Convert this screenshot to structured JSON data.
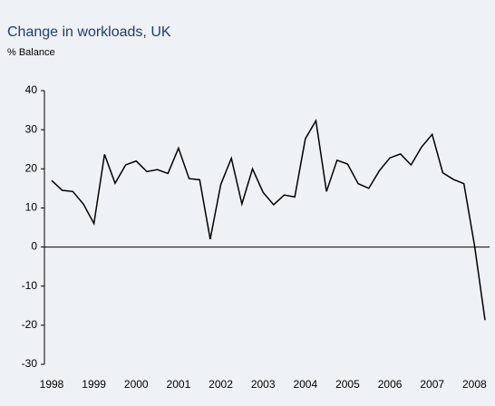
{
  "chart_data": {
    "type": "line",
    "title": "Change in workloads, UK",
    "subtitle": "% Balance",
    "x": [
      1998,
      1998.25,
      1998.5,
      1998.75,
      1999,
      1999.25,
      1999.5,
      1999.75,
      2000,
      2000.25,
      2000.5,
      2000.75,
      2001,
      2001.25,
      2001.5,
      2001.75,
      2002,
      2002.25,
      2002.5,
      2002.75,
      2003,
      2003.25,
      2003.5,
      2003.75,
      2004,
      2004.25,
      2004.5,
      2004.75,
      2005,
      2005.25,
      2005.5,
      2005.75,
      2006,
      2006.25,
      2006.5,
      2006.75,
      2007,
      2007.25,
      2007.5,
      2007.75,
      2008,
      2008.25
    ],
    "series": [
      {
        "color": "#000000",
        "values": [
          17,
          14.5,
          14.2,
          11,
          6,
          23.7,
          16.3,
          21,
          22,
          19.3,
          19.8,
          18.8,
          25.3,
          17.5,
          17.2,
          2,
          16,
          22.7,
          11,
          20,
          14,
          10.8,
          13.3,
          12.8,
          27.7,
          32.3,
          14.2,
          22.2,
          21.2,
          16.2,
          15,
          19.5,
          22.8,
          23.8,
          21,
          25.6,
          28.8,
          19,
          17.3,
          16.2,
          0.5,
          -18.7
        ]
      }
    ],
    "xlim": [
      1998,
      2008.25
    ],
    "xticks": [
      1998,
      1999,
      2000,
      2001,
      2002,
      2003,
      2004,
      2005,
      2006,
      2007,
      2008
    ],
    "ylim": [
      -30,
      40
    ],
    "yticks": [
      -30,
      -20,
      -10,
      0,
      10,
      20,
      30,
      40
    ]
  }
}
